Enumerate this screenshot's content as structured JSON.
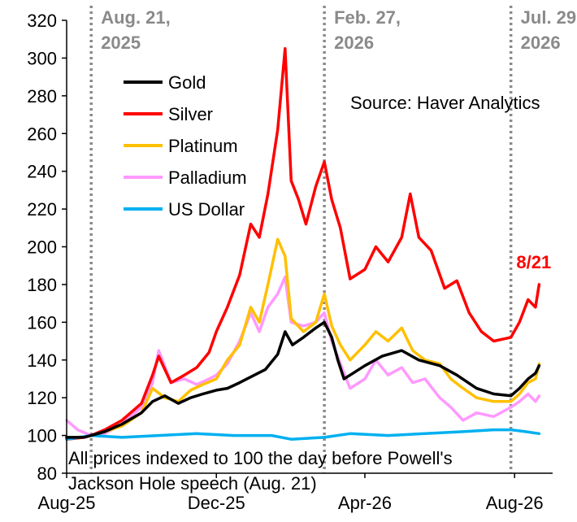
{
  "chart_data": {
    "type": "line",
    "title": "",
    "xlabel": "",
    "ylabel": "",
    "ylim": [
      80,
      320
    ],
    "yticks": [
      80,
      100,
      120,
      140,
      160,
      180,
      200,
      220,
      240,
      260,
      280,
      300,
      320
    ],
    "xlim": [
      "2025-08-01",
      "2026-09-01"
    ],
    "xticks": [
      {
        "date": "2025-08-01",
        "label": "Aug-25"
      },
      {
        "date": "2025-12-01",
        "label": "Dec-25"
      },
      {
        "date": "2026-04-01",
        "label": "Apr-26"
      },
      {
        "date": "2026-08-01",
        "label": "Aug-26"
      }
    ],
    "grid": false,
    "legend_position": "upper-left",
    "source_text": "Source: Haver Analytics",
    "note_lines": [
      "All prices indexed to 100 the day before Powell's",
      "Jackson Hole speech (Aug. 21)"
    ],
    "end_label": {
      "text": "8/21",
      "color": "#ff0000",
      "date": "2026-08-21",
      "value": 180
    },
    "vlines": [
      {
        "date": "2025-08-21",
        "label_lines": [
          "Aug. 21,",
          "2025"
        ]
      },
      {
        "date": "2026-02-27",
        "label_lines": [
          "Feb. 27,",
          "2026"
        ]
      },
      {
        "date": "2026-07-29",
        "label_lines": [
          "Jul. 29,",
          "2026"
        ]
      }
    ],
    "series": [
      {
        "name": "Gold",
        "color": "#000000",
        "points": [
          [
            "2025-08-01",
            99
          ],
          [
            "2025-08-15",
            99
          ],
          [
            "2025-08-21",
            100
          ],
          [
            "2025-09-01",
            102
          ],
          [
            "2025-09-15",
            106
          ],
          [
            "2025-10-01",
            112
          ],
          [
            "2025-10-10",
            118
          ],
          [
            "2025-10-20",
            121
          ],
          [
            "2025-10-31",
            117
          ],
          [
            "2025-11-10",
            120
          ],
          [
            "2025-11-20",
            122
          ],
          [
            "2025-12-01",
            124
          ],
          [
            "2025-12-10",
            125
          ],
          [
            "2025-12-20",
            128
          ],
          [
            "2026-01-01",
            132
          ],
          [
            "2026-01-10",
            135
          ],
          [
            "2026-01-20",
            143
          ],
          [
            "2026-01-26",
            155
          ],
          [
            "2026-02-01",
            148
          ],
          [
            "2026-02-10",
            152
          ],
          [
            "2026-02-20",
            157
          ],
          [
            "2026-02-27",
            160
          ],
          [
            "2026-03-05",
            152
          ],
          [
            "2026-03-10",
            140
          ],
          [
            "2026-03-15",
            130
          ],
          [
            "2026-03-20",
            132
          ],
          [
            "2026-04-01",
            137
          ],
          [
            "2026-04-15",
            142
          ],
          [
            "2026-05-01",
            145
          ],
          [
            "2026-05-15",
            140
          ],
          [
            "2026-06-01",
            137
          ],
          [
            "2026-06-15",
            132
          ],
          [
            "2026-07-01",
            125
          ],
          [
            "2026-07-15",
            122
          ],
          [
            "2026-07-29",
            121
          ],
          [
            "2026-08-05",
            125
          ],
          [
            "2026-08-12",
            130
          ],
          [
            "2026-08-18",
            133
          ],
          [
            "2026-08-21",
            137
          ]
        ]
      },
      {
        "name": "Silver",
        "color": "#ff0000",
        "points": [
          [
            "2025-08-01",
            98
          ],
          [
            "2025-08-15",
            99
          ],
          [
            "2025-08-21",
            100
          ],
          [
            "2025-09-01",
            103
          ],
          [
            "2025-09-15",
            108
          ],
          [
            "2025-10-01",
            117
          ],
          [
            "2025-10-10",
            132
          ],
          [
            "2025-10-15",
            142
          ],
          [
            "2025-10-25",
            128
          ],
          [
            "2025-11-05",
            132
          ],
          [
            "2025-11-15",
            136
          ],
          [
            "2025-11-25",
            144
          ],
          [
            "2025-12-01",
            155
          ],
          [
            "2025-12-10",
            168
          ],
          [
            "2025-12-20",
            185
          ],
          [
            "2025-12-29",
            212
          ],
          [
            "2026-01-05",
            205
          ],
          [
            "2026-01-12",
            228
          ],
          [
            "2026-01-20",
            262
          ],
          [
            "2026-01-26",
            305
          ],
          [
            "2026-01-31",
            235
          ],
          [
            "2026-02-06",
            225
          ],
          [
            "2026-02-12",
            212
          ],
          [
            "2026-02-20",
            232
          ],
          [
            "2026-02-27",
            245
          ],
          [
            "2026-03-05",
            225
          ],
          [
            "2026-03-12",
            210
          ],
          [
            "2026-03-20",
            183
          ],
          [
            "2026-04-01",
            188
          ],
          [
            "2026-04-10",
            200
          ],
          [
            "2026-04-20",
            192
          ],
          [
            "2026-05-01",
            205
          ],
          [
            "2026-05-08",
            228
          ],
          [
            "2026-05-15",
            205
          ],
          [
            "2026-05-25",
            198
          ],
          [
            "2026-06-05",
            178
          ],
          [
            "2026-06-15",
            182
          ],
          [
            "2026-06-25",
            165
          ],
          [
            "2026-07-05",
            155
          ],
          [
            "2026-07-15",
            150
          ],
          [
            "2026-07-29",
            152
          ],
          [
            "2026-08-05",
            160
          ],
          [
            "2026-08-12",
            172
          ],
          [
            "2026-08-18",
            168
          ],
          [
            "2026-08-21",
            180
          ]
        ]
      },
      {
        "name": "Platinum",
        "color": "#ffc000",
        "points": [
          [
            "2025-08-01",
            99
          ],
          [
            "2025-08-15",
            99
          ],
          [
            "2025-08-21",
            100
          ],
          [
            "2025-09-01",
            102
          ],
          [
            "2025-09-15",
            105
          ],
          [
            "2025-10-01",
            112
          ],
          [
            "2025-10-10",
            125
          ],
          [
            "2025-10-20",
            120
          ],
          [
            "2025-10-31",
            118
          ],
          [
            "2025-11-10",
            124
          ],
          [
            "2025-11-20",
            127
          ],
          [
            "2025-12-01",
            130
          ],
          [
            "2025-12-10",
            140
          ],
          [
            "2025-12-20",
            148
          ],
          [
            "2025-12-29",
            168
          ],
          [
            "2026-01-05",
            160
          ],
          [
            "2026-01-12",
            180
          ],
          [
            "2026-01-20",
            204
          ],
          [
            "2026-01-26",
            195
          ],
          [
            "2026-01-31",
            162
          ],
          [
            "2026-02-10",
            155
          ],
          [
            "2026-02-20",
            160
          ],
          [
            "2026-02-27",
            175
          ],
          [
            "2026-03-05",
            158
          ],
          [
            "2026-03-12",
            148
          ],
          [
            "2026-03-20",
            140
          ],
          [
            "2026-04-01",
            148
          ],
          [
            "2026-04-10",
            155
          ],
          [
            "2026-04-20",
            150
          ],
          [
            "2026-05-01",
            157
          ],
          [
            "2026-05-10",
            145
          ],
          [
            "2026-05-20",
            140
          ],
          [
            "2026-06-01",
            138
          ],
          [
            "2026-06-10",
            130
          ],
          [
            "2026-06-20",
            125
          ],
          [
            "2026-07-01",
            120
          ],
          [
            "2026-07-15",
            118
          ],
          [
            "2026-07-29",
            118
          ],
          [
            "2026-08-05",
            122
          ],
          [
            "2026-08-12",
            128
          ],
          [
            "2026-08-18",
            130
          ],
          [
            "2026-08-21",
            138
          ]
        ]
      },
      {
        "name": "Palladium",
        "color": "#ff99ff",
        "points": [
          [
            "2025-08-01",
            108
          ],
          [
            "2025-08-10",
            103
          ],
          [
            "2025-08-21",
            100
          ],
          [
            "2025-09-01",
            101
          ],
          [
            "2025-09-15",
            106
          ],
          [
            "2025-10-01",
            115
          ],
          [
            "2025-10-10",
            128
          ],
          [
            "2025-10-15",
            145
          ],
          [
            "2025-10-25",
            128
          ],
          [
            "2025-11-05",
            130
          ],
          [
            "2025-11-15",
            127
          ],
          [
            "2025-11-25",
            130
          ],
          [
            "2025-12-01",
            132
          ],
          [
            "2025-12-10",
            138
          ],
          [
            "2025-12-20",
            150
          ],
          [
            "2025-12-29",
            165
          ],
          [
            "2026-01-05",
            155
          ],
          [
            "2026-01-12",
            168
          ],
          [
            "2026-01-20",
            175
          ],
          [
            "2026-01-26",
            184
          ],
          [
            "2026-01-31",
            160
          ],
          [
            "2026-02-10",
            158
          ],
          [
            "2026-02-20",
            160
          ],
          [
            "2026-02-27",
            165
          ],
          [
            "2026-03-05",
            150
          ],
          [
            "2026-03-12",
            138
          ],
          [
            "2026-03-20",
            125
          ],
          [
            "2026-04-01",
            130
          ],
          [
            "2026-04-10",
            140
          ],
          [
            "2026-04-20",
            132
          ],
          [
            "2026-05-01",
            136
          ],
          [
            "2026-05-10",
            128
          ],
          [
            "2026-05-20",
            130
          ],
          [
            "2026-06-01",
            120
          ],
          [
            "2026-06-10",
            115
          ],
          [
            "2026-06-20",
            108
          ],
          [
            "2026-07-01",
            112
          ],
          [
            "2026-07-15",
            110
          ],
          [
            "2026-07-29",
            115
          ],
          [
            "2026-08-05",
            118
          ],
          [
            "2026-08-12",
            122
          ],
          [
            "2026-08-18",
            118
          ],
          [
            "2026-08-21",
            121
          ]
        ]
      },
      {
        "name": "US Dollar",
        "color": "#00b0f0",
        "points": [
          [
            "2025-08-01",
            98
          ],
          [
            "2025-08-21",
            100
          ],
          [
            "2025-09-15",
            99
          ],
          [
            "2025-10-15",
            100
          ],
          [
            "2025-11-15",
            101
          ],
          [
            "2025-12-15",
            100
          ],
          [
            "2026-01-15",
            100
          ],
          [
            "2026-01-31",
            98
          ],
          [
            "2026-02-27",
            99
          ],
          [
            "2026-03-20",
            101
          ],
          [
            "2026-04-20",
            100
          ],
          [
            "2026-05-20",
            101
          ],
          [
            "2026-06-20",
            102
          ],
          [
            "2026-07-15",
            103
          ],
          [
            "2026-07-29",
            103
          ],
          [
            "2026-08-10",
            102
          ],
          [
            "2026-08-21",
            101
          ]
        ]
      }
    ]
  }
}
